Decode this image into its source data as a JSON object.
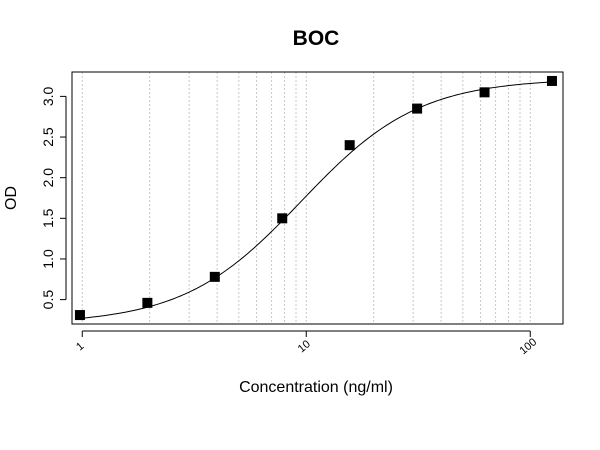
{
  "chart_data": {
    "type": "scatter",
    "title": "BOC",
    "xlabel": "Concentration (ng/ml)",
    "ylabel": "OD",
    "x_scale": "log",
    "xlim": [
      0.9,
      140
    ],
    "ylim": [
      0.2,
      3.3
    ],
    "x_tick_labels": [
      {
        "value": 1,
        "label": "1"
      },
      {
        "value": 10,
        "label": "10"
      },
      {
        "value": 100,
        "label": "100"
      }
    ],
    "y_ticks": [
      0.5,
      1.0,
      1.5,
      2.0,
      2.5,
      3.0
    ],
    "y_tick_labels": [
      "0.5",
      "1.0",
      "1.5",
      "2.0",
      "2.5",
      "3.0"
    ],
    "grid": "vertical dotted lines at log-minor positions",
    "series": [
      {
        "marker": "square",
        "x": [
          0.9766,
          1.953,
          3.906,
          7.8125,
          15.625,
          31.25,
          62.5,
          125
        ],
        "y": [
          0.31,
          0.46,
          0.78,
          1.5,
          2.4,
          2.85,
          3.05,
          3.19
        ]
      }
    ],
    "fit_curve": {
      "type": "4PL logistic",
      "bottom": 0.2,
      "top": 3.22,
      "ec50": 9.5,
      "hill": 1.65
    }
  }
}
